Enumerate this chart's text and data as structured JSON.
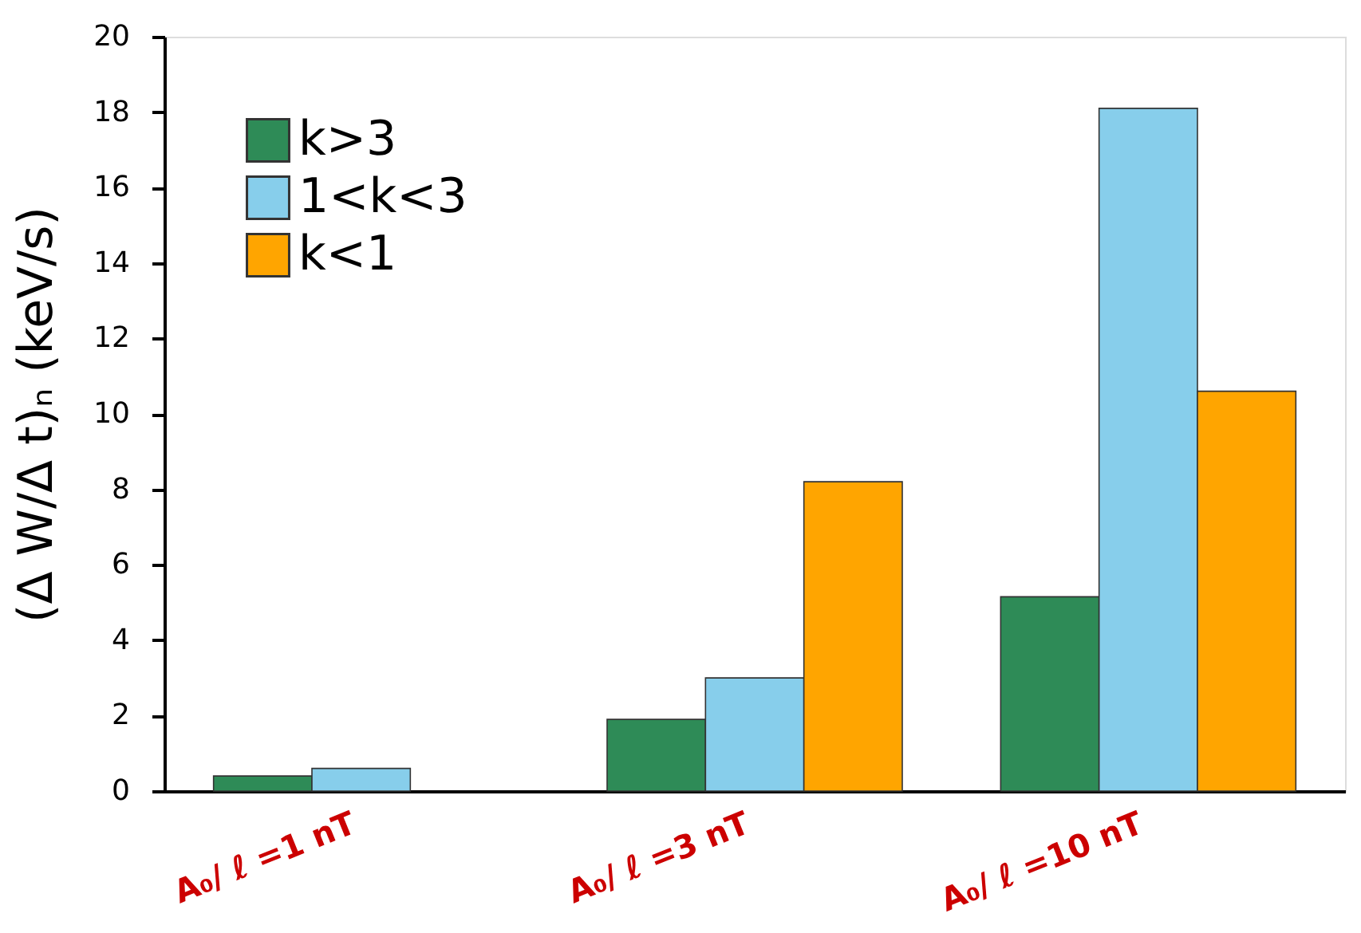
{
  "chart_data": {
    "type": "bar",
    "ylabel": "(Δ W/Δ t)ₙ (keV/s)",
    "categories": [
      "A₀/ ℓ =1 nT",
      "A₀/ ℓ =3 nT",
      "A₀/ ℓ =10 nT"
    ],
    "series": [
      {
        "name": "k>3",
        "color": "#2e8b57",
        "values": [
          0.4,
          1.9,
          5.15
        ]
      },
      {
        "name": "1<k<3",
        "color": "#87ceeb",
        "values": [
          0.6,
          3.0,
          18.1
        ]
      },
      {
        "name": "k<1",
        "color": "#ffa500",
        "values": [
          null,
          8.2,
          10.6
        ]
      }
    ],
    "ylim": [
      0,
      20
    ],
    "yticks": [
      0,
      2,
      4,
      6,
      8,
      10,
      12,
      14,
      16,
      18,
      20
    ],
    "grid": false,
    "legend": "top left"
  }
}
